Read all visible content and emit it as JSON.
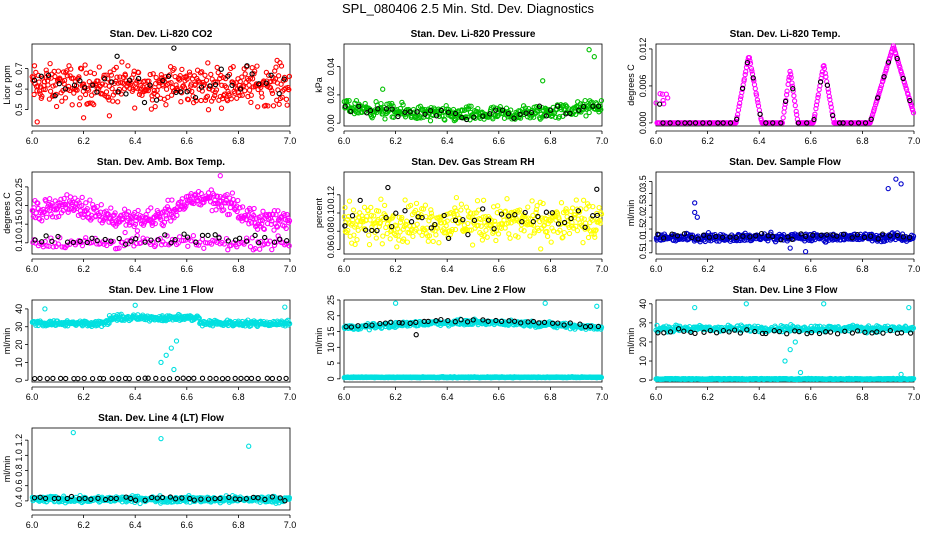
{
  "page_title": "SPL_080406  2.5 Min. Std. Dev. Diagnostics",
  "chart_data": [
    {
      "id": "co2",
      "type": "scatter",
      "title": "Stan. Dev. Li-820 CO2",
      "ylabel": "Licor ppm",
      "xlim": [
        6.0,
        7.0
      ],
      "xticks": [
        "6.0",
        "6.2",
        "6.4",
        "6.6",
        "6.8",
        "7.0"
      ],
      "ylim": [
        0.42,
        0.82
      ],
      "yticks": [
        "0.5",
        "0.6",
        "0.7"
      ],
      "series": [
        {
          "color": "#ff0000",
          "n": 420,
          "base": 0.62,
          "spread": 0.07,
          "lo": 0.44,
          "hi": 0.74,
          "outliers": [
            [
              6.02,
              0.44
            ],
            [
              6.2,
              0.46
            ],
            [
              6.3,
              0.47
            ],
            [
              6.95,
              0.74
            ]
          ]
        },
        {
          "color": "#000000",
          "n": 40,
          "base": 0.62,
          "spread": 0.06,
          "lo": 0.47,
          "hi": 0.8,
          "outliers": [
            [
              6.55,
              0.8
            ],
            [
              6.33,
              0.76
            ]
          ]
        }
      ]
    },
    {
      "id": "pressure",
      "type": "scatter",
      "title": "Stan. Dev. Li-820 Pressure",
      "ylabel": "kPa",
      "xlim": [
        6.0,
        7.0
      ],
      "xticks": [
        "6.0",
        "6.2",
        "6.4",
        "6.6",
        "6.8",
        "7.0"
      ],
      "ylim": [
        -0.002,
        0.056
      ],
      "yticks": [
        "0.00",
        "0.02",
        "0.04"
      ],
      "series": [
        {
          "color": "#00c000",
          "n": 380,
          "base": 0.006,
          "spread": 0.004,
          "lo": 0.0,
          "hi": 0.016,
          "curve": "bowl",
          "outliers": [
            [
              6.95,
              0.052
            ],
            [
              6.97,
              0.047
            ],
            [
              6.77,
              0.03
            ],
            [
              6.15,
              0.024
            ]
          ]
        },
        {
          "color": "#000000",
          "n": 40,
          "base": 0.006,
          "spread": 0.003,
          "lo": 0.001,
          "hi": 0.012,
          "curve": "bowl",
          "outliers": []
        }
      ]
    },
    {
      "id": "temp",
      "type": "scatter",
      "title": "Stan. Dev. Li-820 Temp.",
      "ylabel": "degrees C",
      "xlim": [
        6.0,
        7.0
      ],
      "xticks": [
        "6.0",
        "6.2",
        "6.4",
        "6.6",
        "6.8",
        "7.0"
      ],
      "ylim": [
        -0.0005,
        0.0128
      ],
      "yticks": [
        "0.000",
        "0.006",
        "0.012"
      ],
      "series": [
        {
          "color": "#ff00ff",
          "n": 380,
          "base": 0.0,
          "spread": 0.0,
          "lo": 0.0,
          "hi": 0.013,
          "curve": "spikes",
          "outliers": []
        },
        {
          "color": "#000000",
          "n": 40,
          "base": 0.0,
          "spread": 0.0,
          "lo": 0.0,
          "hi": 0.012,
          "curve": "spikes",
          "outliers": []
        }
      ]
    },
    {
      "id": "ambbox",
      "type": "scatter",
      "title": "Stan. Dev. Amb. Box Temp.",
      "ylabel": "degrees C",
      "xlim": [
        6.0,
        7.0
      ],
      "xticks": [
        "6.0",
        "6.2",
        "6.4",
        "6.6",
        "6.8",
        "7.0"
      ],
      "ylim": [
        0.07,
        0.29
      ],
      "yticks": [
        "0.10",
        "0.15",
        "0.20",
        "0.25"
      ],
      "series": [
        {
          "color": "#ff00ff",
          "n": 380,
          "base": 0.18,
          "spread": 0.02,
          "lo": 0.08,
          "hi": 0.28,
          "curve": "wavy",
          "outliers": [
            [
              6.73,
              0.28
            ]
          ]
        },
        {
          "color": "#ff00ff",
          "n": 140,
          "base": 0.1,
          "spread": 0.012,
          "lo": 0.08,
          "hi": 0.14,
          "curve": "flat",
          "outliers": []
        },
        {
          "color": "#000000",
          "n": 40,
          "base": 0.11,
          "spread": 0.01,
          "lo": 0.09,
          "hi": 0.14,
          "curve": "flat",
          "outliers": []
        }
      ]
    },
    {
      "id": "rh",
      "type": "scatter",
      "title": "Stan. Dev. Gas Stream RH",
      "ylabel": "percent",
      "xlim": [
        6.0,
        7.0
      ],
      "xticks": [
        "6.0",
        "6.2",
        "6.4",
        "6.6",
        "6.8",
        "7.0"
      ],
      "ylim": [
        0.055,
        0.145
      ],
      "yticks": [
        "0.06",
        "0.08",
        "0.10",
        "0.12"
      ],
      "series": [
        {
          "color": "#ffff00",
          "n": 420,
          "base": 0.09,
          "spread": 0.016,
          "lo": 0.058,
          "hi": 0.14,
          "curve": "flat",
          "outliers": []
        },
        {
          "color": "#000000",
          "n": 40,
          "base": 0.092,
          "spread": 0.012,
          "lo": 0.07,
          "hi": 0.13,
          "curve": "flat",
          "outliers": [
            [
              6.17,
              0.128
            ],
            [
              6.98,
              0.126
            ]
          ]
        }
      ]
    },
    {
      "id": "sampleflow",
      "type": "scatter",
      "title": "Stan. Dev. Sample Flow",
      "ylabel": "ml/min",
      "xlim": [
        6.0,
        7.0
      ],
      "xticks": [
        "6.0",
        "6.2",
        "6.4",
        "6.6",
        "6.8",
        "7.0"
      ],
      "ylim": [
        0.45,
        3.9
      ],
      "yticks": [
        "0.5",
        "1.0",
        "1.5",
        "2.0",
        "2.5",
        "3.0",
        "3.5"
      ],
      "series": [
        {
          "color": "#0000cc",
          "n": 400,
          "base": 1.15,
          "spread": 0.12,
          "lo": 0.7,
          "hi": 1.6,
          "curve": "flat",
          "outliers": [
            [
              6.15,
              2.6
            ],
            [
              6.15,
              2.2
            ],
            [
              6.16,
              2.0
            ],
            [
              6.93,
              3.6
            ],
            [
              6.9,
              3.2
            ],
            [
              6.95,
              3.4
            ],
            [
              6.52,
              0.7
            ],
            [
              6.58,
              0.55
            ]
          ]
        },
        {
          "color": "#000000",
          "n": 40,
          "base": 1.2,
          "spread": 0.1,
          "lo": 0.9,
          "hi": 1.5,
          "curve": "flat",
          "outliers": []
        }
      ]
    },
    {
      "id": "line1",
      "type": "scatter",
      "title": "Stan. Dev. Line 1 Flow",
      "ylabel": "ml/min",
      "xlim": [
        6.0,
        7.0
      ],
      "xticks": [
        "6.0",
        "6.2",
        "6.4",
        "6.6",
        "6.8",
        "7.0"
      ],
      "ylim": [
        -1,
        45
      ],
      "yticks": [
        "0",
        "10",
        "20",
        "30",
        "40"
      ],
      "series": [
        {
          "color": "#00e0e0",
          "n": 420,
          "base": 32,
          "spread": 1.2,
          "lo": 28,
          "hi": 42,
          "curve": "hump",
          "outliers": [
            [
              6.05,
              40
            ],
            [
              6.4,
              42
            ],
            [
              6.5,
              10
            ],
            [
              6.52,
              14
            ],
            [
              6.54,
              18
            ],
            [
              6.56,
              22
            ],
            [
              6.55,
              6
            ],
            [
              6.98,
              41
            ]
          ]
        },
        {
          "color": "#000000",
          "n": 40,
          "base": 1,
          "spread": 0.1,
          "lo": 0.8,
          "hi": 1.2,
          "curve": "flat",
          "outliers": []
        }
      ]
    },
    {
      "id": "line2",
      "type": "scatter",
      "title": "Stan. Dev. Line 2 Flow",
      "ylabel": "ml/min",
      "xlim": [
        6.0,
        7.0
      ],
      "xticks": [
        "6.0",
        "6.2",
        "6.4",
        "6.6",
        "6.8",
        "7.0"
      ],
      "ylim": [
        -1,
        25
      ],
      "yticks": [
        "0",
        "5",
        "10",
        "15",
        "20",
        "25"
      ],
      "series": [
        {
          "color": "#00e0e0",
          "n": 380,
          "base": 0.5,
          "spread": 0.1,
          "lo": 0.2,
          "hi": 0.8,
          "curve": "flat",
          "outliers": []
        },
        {
          "color": "#00e0e0",
          "n": 380,
          "base": 17,
          "spread": 0.6,
          "lo": 15,
          "hi": 20,
          "curve": "arch",
          "outliers": [
            [
              6.2,
              24
            ],
            [
              6.78,
              24
            ],
            [
              6.98,
              23
            ]
          ]
        },
        {
          "color": "#000000",
          "n": 40,
          "base": 17.5,
          "spread": 0.4,
          "lo": 14,
          "hi": 20,
          "curve": "arch",
          "outliers": [
            [
              6.28,
              14
            ]
          ]
        }
      ]
    },
    {
      "id": "line3",
      "type": "scatter",
      "title": "Stan. Dev. Line 3 Flow",
      "ylabel": "ml/min",
      "xlim": [
        6.0,
        7.0
      ],
      "xticks": [
        "6.0",
        "6.2",
        "6.4",
        "6.6",
        "6.8",
        "7.0"
      ],
      "ylim": [
        -1,
        42
      ],
      "yticks": [
        "0",
        "10",
        "20",
        "30",
        "40"
      ],
      "series": [
        {
          "color": "#00e0e0",
          "n": 380,
          "base": 0.6,
          "spread": 0.2,
          "lo": 0.2,
          "hi": 1.2,
          "curve": "flat",
          "outliers": [
            [
              6.5,
              10
            ],
            [
              6.52,
              16
            ],
            [
              6.54,
              20
            ],
            [
              6.56,
              4
            ],
            [
              6.95,
              3
            ]
          ]
        },
        {
          "color": "#00e0e0",
          "n": 380,
          "base": 27,
          "spread": 1.2,
          "lo": 24,
          "hi": 30,
          "curve": "flat",
          "outliers": [
            [
              6.15,
              38
            ],
            [
              6.35,
              40
            ],
            [
              6.65,
              40
            ],
            [
              6.98,
              38
            ]
          ]
        },
        {
          "color": "#000000",
          "n": 40,
          "base": 25,
          "spread": 1.0,
          "lo": 21,
          "hi": 29,
          "curve": "flat",
          "outliers": []
        }
      ]
    },
    {
      "id": "line4",
      "type": "scatter",
      "title": "Stan. Dev. Line 4 (LT) Flow",
      "ylabel": "ml/min",
      "xlim": [
        6.0,
        7.0
      ],
      "xticks": [
        "6.0",
        "6.2",
        "6.4",
        "6.6",
        "6.8",
        "7.0"
      ],
      "ylim": [
        0.28,
        1.36
      ],
      "yticks": [
        "0.4",
        "0.6",
        "0.8",
        "1.0",
        "1.2"
      ],
      "series": [
        {
          "color": "#00e0e0",
          "n": 420,
          "base": 0.42,
          "spread": 0.03,
          "lo": 0.33,
          "hi": 0.52,
          "curve": "flat",
          "outliers": [
            [
              6.16,
              1.3
            ],
            [
              6.5,
              1.22
            ],
            [
              6.84,
              1.12
            ]
          ]
        },
        {
          "color": "#000000",
          "n": 40,
          "base": 0.43,
          "spread": 0.02,
          "lo": 0.38,
          "hi": 0.5,
          "curve": "flat",
          "outliers": []
        }
      ]
    }
  ]
}
